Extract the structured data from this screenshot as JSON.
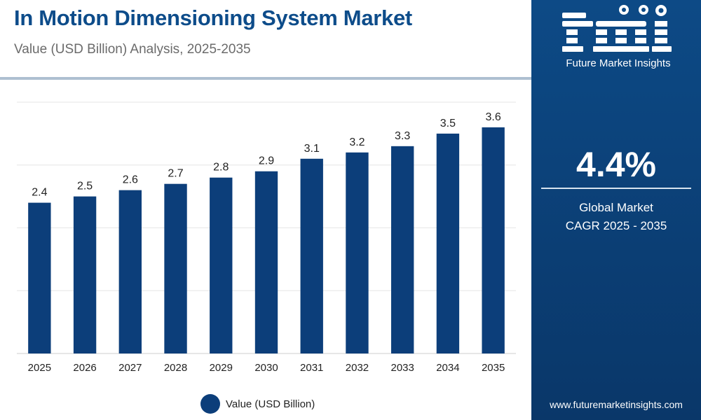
{
  "header": {
    "title": "In Motion Dimensioning System Market",
    "subtitle": "Value (USD Billion) Analysis, 2025-2035"
  },
  "sidebar": {
    "brand_name": "Future Market Insights",
    "cagr_value": "4.4%",
    "cagr_label_line1": "Global Market",
    "cagr_label_line2": "CAGR 2025 - 2035",
    "website": "www.futuremarketinsights.com"
  },
  "colors": {
    "bar": "#0c3e7a",
    "title": "#0d4c8a",
    "panel": "#0d4a86",
    "grid": "#e6e6e6"
  },
  "chart_data": {
    "type": "bar",
    "title": "In Motion Dimensioning System Market",
    "subtitle": "Value (USD Billion) Analysis, 2025-2035",
    "categories": [
      "2025",
      "2026",
      "2027",
      "2028",
      "2029",
      "2030",
      "2031",
      "2032",
      "2033",
      "2034",
      "2035"
    ],
    "series": [
      {
        "name": "Value (USD Billion)",
        "values": [
          2.4,
          2.5,
          2.6,
          2.7,
          2.8,
          2.9,
          3.1,
          3.2,
          3.3,
          3.5,
          3.6
        ]
      }
    ],
    "ylim": [
      0,
      4
    ],
    "grid": true,
    "legend": "bottom"
  }
}
